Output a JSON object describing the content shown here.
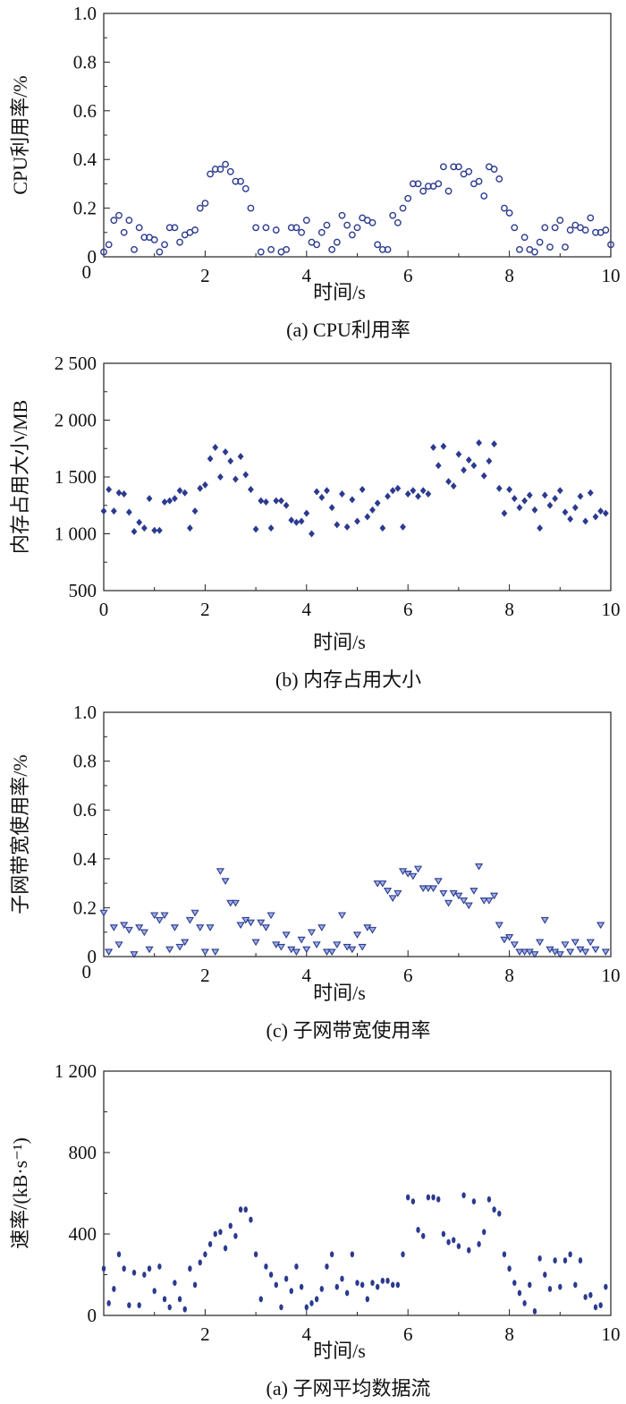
{
  "chart_data": [
    {
      "type": "scatter",
      "caption": "(a) CPU利用率",
      "xlabel": "时间/s",
      "ylabel": "CPU利用率/%",
      "xlim": [
        0,
        10
      ],
      "ylim": [
        0,
        1.0
      ],
      "xticks": [
        0,
        2,
        4,
        6,
        8,
        10
      ],
      "xtick_labels": [
        "",
        "2",
        "4",
        "6",
        "8",
        "10"
      ],
      "yticks": [
        0,
        0.2,
        0.4,
        0.6,
        0.8,
        1.0
      ],
      "ytick_labels": [
        "0",
        "0.2",
        "0.4",
        "0.6",
        "0.8",
        "1.0"
      ],
      "corner_label": "0",
      "marker": "circle-open",
      "color": "#2b3a8f",
      "series": [
        {
          "x": [
            0,
            0.1,
            0.2,
            0.3,
            0.4,
            0.5,
            0.6,
            0.7,
            0.8,
            0.9,
            1.0,
            1.1,
            1.2,
            1.3,
            1.4,
            1.5,
            1.6,
            1.7,
            1.8,
            1.9,
            2.0,
            2.1,
            2.2,
            2.3,
            2.4,
            2.5,
            2.6,
            2.7,
            2.8,
            2.9,
            3.0,
            3.1,
            3.2,
            3.3,
            3.4,
            3.5,
            3.6,
            3.7,
            3.8,
            3.9,
            4.0,
            4.1,
            4.2,
            4.3,
            4.4,
            4.5,
            4.6,
            4.7,
            4.8,
            4.9,
            5.0,
            5.1,
            5.2,
            5.3,
            5.4,
            5.5,
            5.6,
            5.7,
            5.8,
            5.9,
            6.0,
            6.1,
            6.2,
            6.3,
            6.4,
            6.5,
            6.6,
            6.7,
            6.8,
            6.9,
            7.0,
            7.1,
            7.2,
            7.3,
            7.4,
            7.5,
            7.6,
            7.7,
            7.8,
            7.9,
            8.0,
            8.1,
            8.2,
            8.3,
            8.4,
            8.5,
            8.6,
            8.7,
            8.8,
            8.9,
            9.0,
            9.1,
            9.2,
            9.3,
            9.4,
            9.5,
            9.6,
            9.7,
            9.8,
            9.9,
            10.0
          ],
          "y": [
            0.02,
            0.05,
            0.15,
            0.17,
            0.1,
            0.15,
            0.03,
            0.12,
            0.08,
            0.08,
            0.07,
            0.02,
            0.05,
            0.12,
            0.12,
            0.06,
            0.09,
            0.1,
            0.11,
            0.2,
            0.22,
            0.34,
            0.36,
            0.36,
            0.38,
            0.35,
            0.31,
            0.31,
            0.28,
            0.2,
            0.12,
            0.02,
            0.12,
            0.03,
            0.11,
            0.02,
            0.03,
            0.12,
            0.12,
            0.1,
            0.15,
            0.06,
            0.05,
            0.1,
            0.13,
            0.03,
            0.06,
            0.17,
            0.13,
            0.09,
            0.12,
            0.16,
            0.15,
            0.14,
            0.05,
            0.03,
            0.03,
            0.17,
            0.14,
            0.2,
            0.24,
            0.3,
            0.3,
            0.27,
            0.29,
            0.29,
            0.3,
            0.37,
            0.27,
            0.37,
            0.37,
            0.34,
            0.35,
            0.3,
            0.31,
            0.25,
            0.37,
            0.36,
            0.32,
            0.2,
            0.18,
            0.12,
            0.03,
            0.08,
            0.03,
            0.02,
            0.06,
            0.12,
            0.04,
            0.12,
            0.15,
            0.04,
            0.11,
            0.13,
            0.12,
            0.11,
            0.16,
            0.1,
            0.1,
            0.11,
            0.05
          ]
        }
      ]
    },
    {
      "type": "scatter",
      "caption": "(b) 内存占用大小",
      "xlabel": "时间/s",
      "ylabel": "内存占用大小/MB",
      "xlim": [
        0,
        10
      ],
      "ylim": [
        500,
        2500
      ],
      "xticks": [
        0,
        2,
        4,
        6,
        8,
        10
      ],
      "xtick_labels": [
        "0",
        "2",
        "4",
        "6",
        "8",
        "10"
      ],
      "yticks": [
        500,
        1000,
        1500,
        2000,
        2500
      ],
      "ytick_labels": [
        "500",
        "1 000",
        "1 500",
        "2 000",
        "2 500"
      ],
      "corner_label": "",
      "marker": "diamond-filled",
      "color": "#2b3a8f",
      "series": [
        {
          "x": [
            0,
            0.1,
            0.2,
            0.3,
            0.4,
            0.5,
            0.6,
            0.7,
            0.8,
            0.9,
            1.0,
            1.1,
            1.2,
            1.3,
            1.4,
            1.5,
            1.6,
            1.7,
            1.8,
            1.9,
            2.0,
            2.1,
            2.2,
            2.3,
            2.4,
            2.5,
            2.6,
            2.7,
            2.8,
            2.9,
            3.0,
            3.1,
            3.2,
            3.3,
            3.4,
            3.5,
            3.6,
            3.7,
            3.8,
            3.9,
            4.0,
            4.1,
            4.2,
            4.3,
            4.4,
            4.5,
            4.6,
            4.7,
            4.8,
            4.9,
            5.0,
            5.1,
            5.2,
            5.3,
            5.4,
            5.5,
            5.6,
            5.7,
            5.8,
            5.9,
            6.0,
            6.1,
            6.2,
            6.3,
            6.4,
            6.5,
            6.6,
            6.7,
            6.8,
            6.9,
            7.0,
            7.1,
            7.2,
            7.3,
            7.4,
            7.5,
            7.6,
            7.7,
            7.8,
            7.9,
            8.0,
            8.1,
            8.2,
            8.3,
            8.4,
            8.5,
            8.6,
            8.7,
            8.8,
            8.9,
            9.0,
            9.1,
            9.2,
            9.3,
            9.4,
            9.5,
            9.6,
            9.7,
            9.8,
            9.9
          ],
          "y": [
            1200,
            1390,
            1200,
            1360,
            1350,
            1190,
            1020,
            1100,
            1050,
            1310,
            1030,
            1030,
            1280,
            1290,
            1310,
            1380,
            1360,
            1050,
            1200,
            1400,
            1430,
            1660,
            1760,
            1500,
            1720,
            1640,
            1480,
            1680,
            1520,
            1390,
            1040,
            1290,
            1280,
            1050,
            1290,
            1290,
            1250,
            1120,
            1100,
            1110,
            1180,
            1000,
            1370,
            1320,
            1380,
            1230,
            1080,
            1350,
            1060,
            1300,
            1110,
            1390,
            1150,
            1210,
            1270,
            1050,
            1330,
            1380,
            1400,
            1060,
            1350,
            1380,
            1330,
            1380,
            1350,
            1760,
            1600,
            1770,
            1460,
            1420,
            1700,
            1560,
            1650,
            1600,
            1800,
            1510,
            1640,
            1790,
            1400,
            1180,
            1390,
            1310,
            1230,
            1290,
            1340,
            1210,
            1050,
            1340,
            1250,
            1310,
            1380,
            1190,
            1130,
            1230,
            1330,
            1110,
            1360,
            1150,
            1200,
            1180
          ]
        }
      ]
    },
    {
      "type": "scatter",
      "caption": "(c) 子网带宽使用率",
      "xlabel": "时间/s",
      "ylabel": "子网带宽使用率/%",
      "xlim": [
        0,
        10
      ],
      "ylim": [
        0,
        1.0
      ],
      "xticks": [
        0,
        2,
        4,
        6,
        8,
        10
      ],
      "xtick_labels": [
        "",
        "2",
        "4",
        "6",
        "8",
        "10"
      ],
      "yticks": [
        0,
        0.2,
        0.4,
        0.6,
        0.8,
        1.0
      ],
      "ytick_labels": [
        "0",
        "0.2",
        "0.4",
        "0.6",
        "0.8",
        "1.0"
      ],
      "corner_label": "0",
      "marker": "triangle-down-open",
      "color": "#2b3a8f",
      "series": [
        {
          "x": [
            0,
            0.1,
            0.2,
            0.3,
            0.4,
            0.5,
            0.6,
            0.7,
            0.8,
            0.9,
            1.0,
            1.1,
            1.2,
            1.3,
            1.4,
            1.5,
            1.6,
            1.7,
            1.8,
            1.9,
            2.0,
            2.1,
            2.2,
            2.3,
            2.4,
            2.5,
            2.6,
            2.7,
            2.8,
            2.9,
            3.0,
            3.1,
            3.2,
            3.3,
            3.4,
            3.5,
            3.6,
            3.7,
            3.8,
            3.9,
            4.0,
            4.1,
            4.2,
            4.3,
            4.4,
            4.5,
            4.6,
            4.7,
            4.8,
            4.9,
            5.0,
            5.1,
            5.2,
            5.3,
            5.4,
            5.5,
            5.6,
            5.7,
            5.8,
            5.9,
            6.0,
            6.1,
            6.2,
            6.3,
            6.4,
            6.5,
            6.6,
            6.7,
            6.8,
            6.9,
            7.0,
            7.1,
            7.2,
            7.3,
            7.4,
            7.5,
            7.6,
            7.7,
            7.8,
            7.9,
            8.0,
            8.1,
            8.2,
            8.3,
            8.4,
            8.5,
            8.6,
            8.7,
            8.8,
            8.9,
            9.0,
            9.1,
            9.2,
            9.3,
            9.4,
            9.5,
            9.6,
            9.7,
            9.8,
            9.9
          ],
          "y": [
            0.18,
            0.02,
            0.12,
            0.05,
            0.13,
            0.11,
            0.01,
            0.12,
            0.1,
            0.03,
            0.17,
            0.15,
            0.17,
            0.03,
            0.12,
            0.04,
            0.06,
            0.15,
            0.18,
            0.12,
            0.02,
            0.12,
            0.02,
            0.35,
            0.31,
            0.22,
            0.22,
            0.13,
            0.15,
            0.14,
            0.06,
            0.14,
            0.12,
            0.17,
            0.05,
            0.04,
            0.09,
            0.03,
            0.02,
            0.07,
            0.03,
            0.1,
            0.05,
            0.12,
            0.02,
            0.02,
            0.05,
            0.17,
            0.04,
            0.03,
            0.09,
            0.04,
            0.12,
            0.11,
            0.3,
            0.3,
            0.27,
            0.24,
            0.26,
            0.35,
            0.34,
            0.33,
            0.36,
            0.28,
            0.28,
            0.28,
            0.31,
            0.26,
            0.22,
            0.26,
            0.25,
            0.23,
            0.21,
            0.27,
            0.37,
            0.23,
            0.23,
            0.25,
            0.13,
            0.07,
            0.08,
            0.05,
            0.02,
            0.02,
            0.02,
            0.01,
            0.06,
            0.15,
            0.03,
            0.02,
            0.01,
            0.05,
            0.02,
            0.06,
            0.03,
            0.02,
            0.06,
            0.03,
            0.13,
            0.02
          ]
        }
      ]
    },
    {
      "type": "scatter",
      "caption": "(a) 子网平均数据流",
      "xlabel": "时间/s",
      "ylabel": "速率/(kB·s⁻¹)",
      "xlim": [
        0,
        10
      ],
      "ylim": [
        0,
        1200
      ],
      "xticks": [
        0,
        2,
        4,
        6,
        8,
        10
      ],
      "xtick_labels": [
        "",
        "2",
        "4",
        "6",
        "8",
        "10"
      ],
      "yticks": [
        0,
        400,
        800,
        1200
      ],
      "ytick_labels": [
        "0",
        "400",
        "800",
        "1 200"
      ],
      "corner_label": "",
      "marker": "ellipse-filled",
      "color": "#2b3a8f",
      "series": [
        {
          "x": [
            0,
            0.1,
            0.2,
            0.3,
            0.4,
            0.5,
            0.6,
            0.7,
            0.8,
            0.9,
            1.0,
            1.1,
            1.2,
            1.3,
            1.4,
            1.5,
            1.6,
            1.7,
            1.8,
            1.9,
            2.0,
            2.1,
            2.2,
            2.3,
            2.4,
            2.5,
            2.6,
            2.7,
            2.8,
            2.9,
            3.0,
            3.1,
            3.2,
            3.3,
            3.4,
            3.5,
            3.6,
            3.7,
            3.8,
            3.9,
            4.0,
            4.1,
            4.2,
            4.3,
            4.4,
            4.5,
            4.6,
            4.7,
            4.8,
            4.9,
            5.0,
            5.1,
            5.2,
            5.3,
            5.4,
            5.5,
            5.6,
            5.7,
            5.8,
            5.9,
            6.0,
            6.1,
            6.2,
            6.3,
            6.4,
            6.5,
            6.6,
            6.7,
            6.8,
            6.9,
            7.0,
            7.1,
            7.2,
            7.3,
            7.4,
            7.5,
            7.6,
            7.7,
            7.8,
            7.9,
            8.0,
            8.1,
            8.2,
            8.3,
            8.4,
            8.5,
            8.6,
            8.7,
            8.8,
            8.9,
            9.0,
            9.1,
            9.2,
            9.3,
            9.4,
            9.5,
            9.6,
            9.7,
            9.8,
            9.9
          ],
          "y": [
            230,
            60,
            130,
            300,
            230,
            50,
            210,
            50,
            200,
            230,
            120,
            240,
            80,
            40,
            160,
            80,
            30,
            230,
            150,
            260,
            300,
            350,
            400,
            410,
            330,
            440,
            390,
            520,
            520,
            470,
            300,
            80,
            240,
            200,
            150,
            40,
            180,
            120,
            240,
            140,
            40,
            60,
            80,
            130,
            240,
            300,
            140,
            180,
            110,
            300,
            160,
            150,
            80,
            160,
            140,
            170,
            170,
            150,
            150,
            300,
            580,
            560,
            420,
            390,
            580,
            580,
            570,
            400,
            360,
            370,
            340,
            590,
            320,
            560,
            350,
            410,
            570,
            520,
            500,
            300,
            230,
            160,
            110,
            60,
            150,
            20,
            280,
            200,
            130,
            270,
            140,
            270,
            300,
            150,
            270,
            90,
            100,
            40,
            50,
            140
          ]
        }
      ]
    }
  ]
}
